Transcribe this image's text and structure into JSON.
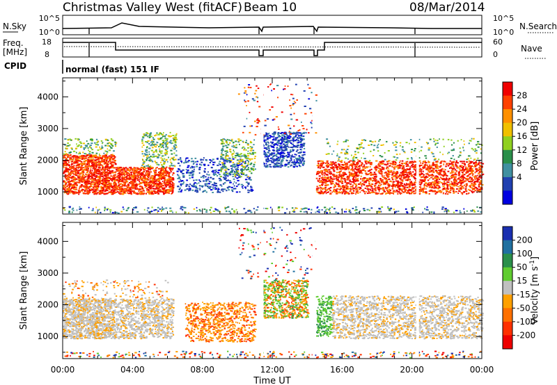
{
  "header": {
    "title": "Christmas Valley West (fitACF)",
    "beam": "Beam 10",
    "date": "08/Mar/2014"
  },
  "panels": {
    "nsky": {
      "left_label": "N.Sky",
      "left_ticks": [
        "10^5",
        "10^0"
      ],
      "right_ticks": [
        "10^5",
        "10^0"
      ],
      "right_label": "N.Search"
    },
    "freq": {
      "left_label_1": "Freq.",
      "left_label_2": "[MHz]",
      "left_ticks": [
        "18",
        "8"
      ],
      "right_ticks": [
        "60",
        "0"
      ],
      "right_label": "Nave"
    },
    "cpid": {
      "label": "CPID",
      "text": "normal (fast) 151 IF"
    }
  },
  "chart_data": [
    {
      "type": "heatmap",
      "name": "power",
      "ylabel": "Slant Range [km]",
      "xlabel": "Time UT",
      "x_ticks": [
        "00:00",
        "04:00",
        "08:00",
        "12:00",
        "16:00",
        "20:00",
        "00:00"
      ],
      "y_ticks": [
        1000,
        2000,
        3000,
        4000
      ],
      "ylim": [
        300,
        4600
      ],
      "colorbar": {
        "label": "Power [dB]",
        "ticks": [
          "28",
          "24",
          "20",
          "16",
          "12",
          "8",
          "4"
        ],
        "colors": [
          "#f00000",
          "#ff4000",
          "#ff9000",
          "#f0c000",
          "#90d020",
          "#2a8f4a",
          "#4090a0",
          "#2040b0",
          "#0000e0"
        ]
      }
    },
    {
      "type": "heatmap",
      "name": "velocity",
      "ylabel": "Slant Range [km]",
      "xlabel": "Time UT",
      "x_ticks": [
        "00:00",
        "04:00",
        "08:00",
        "12:00",
        "16:00",
        "20:00",
        "00:00"
      ],
      "y_ticks": [
        1000,
        2000,
        3000,
        4000
      ],
      "ylim": [
        300,
        4600
      ],
      "colorbar": {
        "label": "Velocity [m s",
        "label_sup": "-1",
        "label_end": "]",
        "ticks": [
          "200",
          "100",
          "50",
          "15",
          "-15",
          "-50",
          "-100",
          "-200"
        ],
        "colors": [
          "#1a2fb0",
          "#2070a0",
          "#2a8f4a",
          "#60cc30",
          "#c0c0c0",
          "#ffa000",
          "#ff7000",
          "#ff3000",
          "#ee0000"
        ]
      }
    }
  ]
}
